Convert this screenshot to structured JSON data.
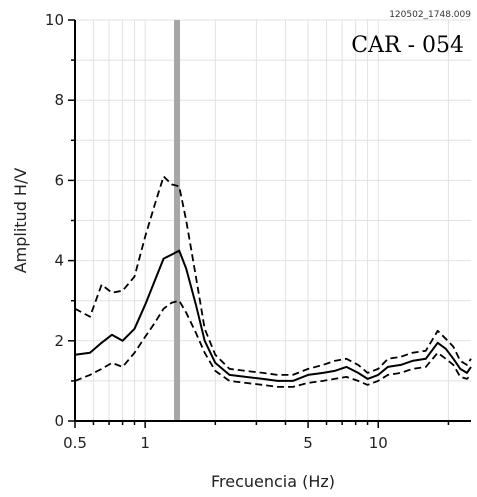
{
  "chart_data": {
    "type": "line",
    "file_id": "120502_1748.009",
    "station": "CAR - 054",
    "xlabel": "Frecuencia (Hz)",
    "ylabel": "Amplitud H/V",
    "x_scale": "log",
    "xlim": [
      0.5,
      25
    ],
    "ylim": [
      0,
      10
    ],
    "x_ticks": [
      0.5,
      1,
      5,
      10
    ],
    "x_tick_labels": [
      "0.5",
      "1",
      "5",
      "10"
    ],
    "x_minor_ticks": [
      0.6,
      0.7,
      0.8,
      0.9,
      2,
      3,
      4,
      6,
      7,
      8,
      9,
      20
    ],
    "y_ticks": [
      0,
      2,
      4,
      6,
      8,
      10
    ],
    "y_tick_labels": [
      "0",
      "2",
      "4",
      "6",
      "8",
      "10"
    ],
    "grid": true,
    "peak_frequency_band": [
      1.33,
      1.4
    ],
    "series": [
      {
        "style": "solid",
        "x": [
          0.5,
          0.58,
          0.65,
          0.72,
          0.8,
          0.9,
          1.0,
          1.1,
          1.2,
          1.3,
          1.4,
          1.5,
          1.65,
          1.8,
          2.0,
          2.3,
          2.7,
          3.2,
          3.7,
          4.3,
          5.0,
          5.8,
          6.5,
          7.3,
          8.2,
          9.0,
          10.0,
          11.0,
          12.5,
          14.0,
          16.0,
          18.0,
          19.5,
          21.0,
          22.5,
          24.0,
          25.0
        ],
        "y": [
          1.65,
          1.7,
          1.95,
          2.15,
          2.0,
          2.3,
          2.9,
          3.5,
          4.05,
          4.15,
          4.25,
          3.8,
          2.9,
          2.0,
          1.45,
          1.15,
          1.1,
          1.05,
          1.0,
          1.0,
          1.15,
          1.2,
          1.25,
          1.35,
          1.2,
          1.05,
          1.15,
          1.35,
          1.4,
          1.5,
          1.55,
          1.95,
          1.8,
          1.55,
          1.3,
          1.2,
          1.35
        ]
      },
      {
        "style": "dashed",
        "x": [
          0.5,
          0.58,
          0.65,
          0.72,
          0.8,
          0.9,
          1.0,
          1.1,
          1.2,
          1.3,
          1.4,
          1.5,
          1.65,
          1.8,
          2.0,
          2.3,
          2.7,
          3.2,
          3.7,
          4.3,
          5.0,
          5.8,
          6.5,
          7.3,
          8.2,
          9.0,
          10.0,
          11.0,
          12.5,
          14.0,
          16.0,
          18.0,
          19.5,
          21.0,
          22.5,
          24.0,
          25.0
        ],
        "y": [
          2.8,
          2.6,
          3.4,
          3.2,
          3.25,
          3.6,
          4.6,
          5.4,
          6.1,
          5.9,
          5.85,
          5.0,
          3.6,
          2.3,
          1.65,
          1.3,
          1.25,
          1.2,
          1.15,
          1.15,
          1.3,
          1.4,
          1.5,
          1.55,
          1.4,
          1.2,
          1.3,
          1.55,
          1.6,
          1.7,
          1.75,
          2.25,
          2.05,
          1.85,
          1.5,
          1.4,
          1.55
        ]
      },
      {
        "style": "dashed",
        "x": [
          0.5,
          0.58,
          0.65,
          0.72,
          0.8,
          0.9,
          1.0,
          1.1,
          1.2,
          1.3,
          1.4,
          1.5,
          1.65,
          1.8,
          2.0,
          2.3,
          2.7,
          3.2,
          3.7,
          4.3,
          5.0,
          5.8,
          6.5,
          7.3,
          8.2,
          9.0,
          10.0,
          11.0,
          12.5,
          14.0,
          16.0,
          18.0,
          19.5,
          21.0,
          22.5,
          24.0,
          25.0
        ],
        "y": [
          1.0,
          1.15,
          1.3,
          1.45,
          1.35,
          1.7,
          2.1,
          2.45,
          2.8,
          2.95,
          3.0,
          2.7,
          2.2,
          1.7,
          1.25,
          1.0,
          0.95,
          0.9,
          0.85,
          0.85,
          0.95,
          1.0,
          1.05,
          1.1,
          1.0,
          0.9,
          1.0,
          1.15,
          1.2,
          1.3,
          1.35,
          1.7,
          1.55,
          1.4,
          1.1,
          1.05,
          1.15
        ]
      }
    ],
    "colors": {
      "curve": "#000000",
      "band": "#a6a6a6",
      "grid": "#e2e2e2"
    }
  }
}
